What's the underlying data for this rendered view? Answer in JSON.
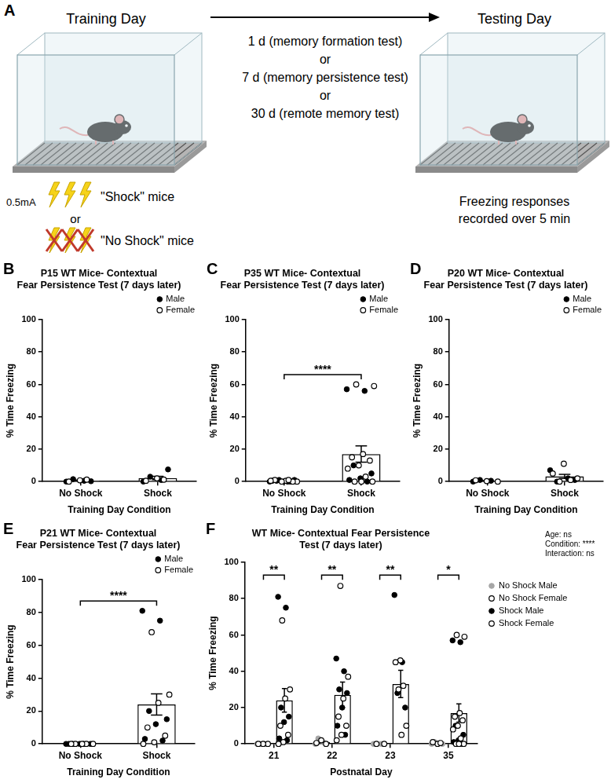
{
  "diagram": {
    "panel": "A",
    "training_day": "Training Day",
    "testing_day": "Testing Day",
    "intervals": [
      "1 d (memory formation test)",
      "or",
      "7 d (memory persistence test)",
      "or",
      "30 d (remote memory test)"
    ],
    "shock_intensity": "0.5mA",
    "shock_label": "\"Shock\" mice",
    "or": "or",
    "no_shock_label": "\"No Shock\" mice",
    "recording": [
      "Freezing responses",
      "recorded over 5 min"
    ]
  },
  "chart_data": [
    {
      "panel": "B",
      "type": "bar",
      "title": [
        "P15 WT Mice- Contextual",
        "Fear Persistence Test (7 days later)"
      ],
      "x_label": "Training Day Condition",
      "y_label": "% Time Freezing",
      "categories": [
        "No Shock",
        "Shock"
      ],
      "series": [
        {
          "color": "#ffffff",
          "values": [
            0.6,
            2.2
          ],
          "errors": [
            0.3,
            1.0
          ],
          "points": [
            {
              "name": "Male",
              "marker": "filled",
              "color": "#000000",
              "values": [
                [
                  0,
                  0.5,
                  1.5,
                  0.2
                ],
                [
                  0,
                  1,
                  3,
                  7.5
                ]
              ]
            },
            {
              "name": "Female",
              "marker": "open",
              "color": "#000000",
              "values": [
                [
                  0.8,
                  0,
                  1.2
                ],
                [
                  2,
                  0.5,
                  1.2
                ]
              ]
            }
          ]
        }
      ],
      "ylim": [
        0,
        100
      ],
      "yticks": [
        0,
        20,
        40,
        60,
        80,
        100
      ],
      "grid": false,
      "legend": "upper right",
      "significance": []
    },
    {
      "panel": "C",
      "type": "bar",
      "title": [
        "P35 WT Mice- Contextual",
        "Fear Persistence Test (7 days later)"
      ],
      "x_label": "Training Day Condition",
      "y_label": "% Time Freezing",
      "categories": [
        "No Shock",
        "Shock"
      ],
      "series": [
        {
          "color": "#ffffff",
          "values": [
            0.4,
            17
          ],
          "errors": [
            0.1,
            5
          ],
          "points": [
            {
              "name": "Male",
              "marker": "filled",
              "color": "#000000",
              "values": [
                [
                  0,
                  0,
                  0.5,
                  1,
                  0,
                  0.5,
                  0,
                  1
                ],
                [
                  57,
                  56,
                  10,
                  5,
                  2,
                  1,
                  0
                ]
              ]
            },
            {
              "name": "Female",
              "marker": "open",
              "color": "#000000",
              "values": [
                [
                  0,
                  0.5,
                  1,
                  0,
                  0,
                  0.5,
                  1
                ],
                [
                  60,
                  59,
                  17,
                  15,
                  13,
                  10,
                  8,
                  3,
                  0,
                  0,
                  0
                ]
              ]
            }
          ]
        }
      ],
      "ylim": [
        0,
        100
      ],
      "yticks": [
        0,
        20,
        40,
        60,
        80,
        100
      ],
      "grid": false,
      "legend": "upper right",
      "significance": [
        {
          "from": [
            0,
            0
          ],
          "to": [
            0,
            1
          ],
          "label": "****"
        }
      ]
    },
    {
      "panel": "D",
      "type": "bar",
      "title": [
        "P20 WT Mice- Contextual",
        "Fear Persistence Test (7 days later)"
      ],
      "x_label": "Training Day Condition",
      "y_label": "% Time Freezing",
      "categories": [
        "No Shock",
        "Shock"
      ],
      "series": [
        {
          "color": "#ffffff",
          "values": [
            0.4,
            3.2
          ],
          "errors": [
            0.2,
            1.3
          ],
          "points": [
            {
              "name": "Male",
              "marker": "filled",
              "color": "#000000",
              "values": [
                [
                  0,
                  0.5,
                  1
                ],
                [
                  7,
                  2,
                  0,
                  1
                ]
              ]
            },
            {
              "name": "Female",
              "marker": "open",
              "color": "#000000",
              "values": [
                [
                  0,
                  0.3,
                  0.8
                ],
                [
                  11,
                  5,
                  1,
                  0,
                  2
                ]
              ]
            }
          ]
        }
      ],
      "ylim": [
        0,
        100
      ],
      "yticks": [
        0,
        20,
        40,
        60,
        80,
        100
      ],
      "grid": false,
      "legend": "upper right",
      "significance": []
    },
    {
      "panel": "E",
      "type": "bar",
      "title": [
        "P21 WT Mice- Contextual",
        "Fear Persistence Test (7 days later)"
      ],
      "x_label": "Training Day Condition",
      "y_label": "% Time Freezing",
      "categories": [
        "No Shock",
        "Shock"
      ],
      "series": [
        {
          "color": "#ffffff",
          "values": [
            0,
            24
          ],
          "errors": [
            0,
            6.5
          ],
          "points": [
            {
              "name": "Male",
              "marker": "filled",
              "color": "#000000",
              "values": [
                [
                  0,
                  0,
                  0,
                  0,
                  0,
                  0
                ],
                [
                  81,
                  75,
                  20,
                  15,
                  12,
                  3,
                  2
                ]
              ]
            },
            {
              "name": "Female",
              "marker": "open",
              "color": "#000000",
              "values": [
                [
                  0,
                  0,
                  0,
                  0,
                  0
                ],
                [
                  68,
                  30,
                  25,
                  10,
                  5,
                  1,
                  0
                ]
              ]
            }
          ]
        }
      ],
      "ylim": [
        0,
        100
      ],
      "yticks": [
        0,
        20,
        40,
        60,
        80,
        100
      ],
      "grid": false,
      "legend": "upper right",
      "significance": [
        {
          "from": [
            0,
            0
          ],
          "to": [
            0,
            1
          ],
          "label": "****"
        }
      ]
    },
    {
      "panel": "F",
      "type": "bar",
      "title": [
        "WT Mice- Contextual Fear Persistence",
        "Test (7 days later)"
      ],
      "x_label": "Postnatal Day",
      "y_label": "% Time Freezing",
      "categories": [
        "21",
        "22",
        "23",
        "35"
      ],
      "series": [
        {
          "color": "#ffffff",
          "values": [
            0,
            1,
            0,
            0.4
          ],
          "errors": [
            0,
            0.5,
            0,
            0.2
          ],
          "points": [
            {
              "name": "No Shock Male",
              "marker": "filled",
              "color": "#a6a6a6",
              "values": [
                [
                  0,
                  0,
                  0
                ],
                [
                  0,
                  1,
                  3
                ],
                [
                  0,
                  0
                ],
                [
                  0,
                  0.5,
                  1,
                  0
                ]
              ]
            },
            {
              "name": "No Shock Female",
              "marker": "open",
              "color": "#000000",
              "values": [
                [
                  0,
                  0,
                  0
                ],
                [
                  0,
                  2,
                  0.5
                ],
                [
                  0,
                  0
                ],
                [
                  0,
                  1,
                  0.5
                ]
              ]
            }
          ]
        },
        {
          "color": "#ffffff",
          "values": [
            24,
            27,
            33,
            17
          ],
          "errors": [
            6.5,
            7,
            7.5,
            5
          ],
          "points": [
            {
              "name": "Shock Male",
              "marker": "filled",
              "color": "#000000",
              "values": [
                [
                  81,
                  75,
                  20,
                  15,
                  12,
                  3,
                  2
                ],
                [
                  47,
                  40,
                  30,
                  28,
                  20,
                  10,
                  5
                ],
                [
                  82,
                  45,
                  28,
                  20
                ],
                [
                  57,
                  56,
                  10,
                  5,
                  2,
                  1,
                  0
                ]
              ]
            },
            {
              "name": "Shock Female",
              "marker": "open",
              "color": "#000000",
              "values": [
                [
                  68,
                  30,
                  25,
                  10,
                  5,
                  1,
                  0
                ],
                [
                  87,
                  37,
                  25,
                  15,
                  10,
                  5,
                  2
                ],
                [
                  46,
                  45,
                  32,
                  30,
                  10,
                  5
                ],
                [
                  60,
                  59,
                  17,
                  15,
                  13,
                  10,
                  8,
                  3,
                  0,
                  0,
                  0
                ]
              ]
            }
          ]
        }
      ],
      "ylim": [
        0,
        100
      ],
      "yticks": [
        0,
        20,
        40,
        60,
        80,
        100
      ],
      "grid": false,
      "legend": "right",
      "annotations": [
        "Age: ns",
        "Condition: ****",
        "Interaction: ns"
      ],
      "significance": [
        {
          "from": [
            0,
            0
          ],
          "to": [
            1,
            0
          ],
          "label": "**"
        },
        {
          "from": [
            0,
            1
          ],
          "to": [
            1,
            1
          ],
          "label": "**"
        },
        {
          "from": [
            0,
            2
          ],
          "to": [
            1,
            2
          ],
          "label": "**"
        },
        {
          "from": [
            0,
            3
          ],
          "to": [
            1,
            3
          ],
          "label": "*"
        }
      ]
    }
  ]
}
